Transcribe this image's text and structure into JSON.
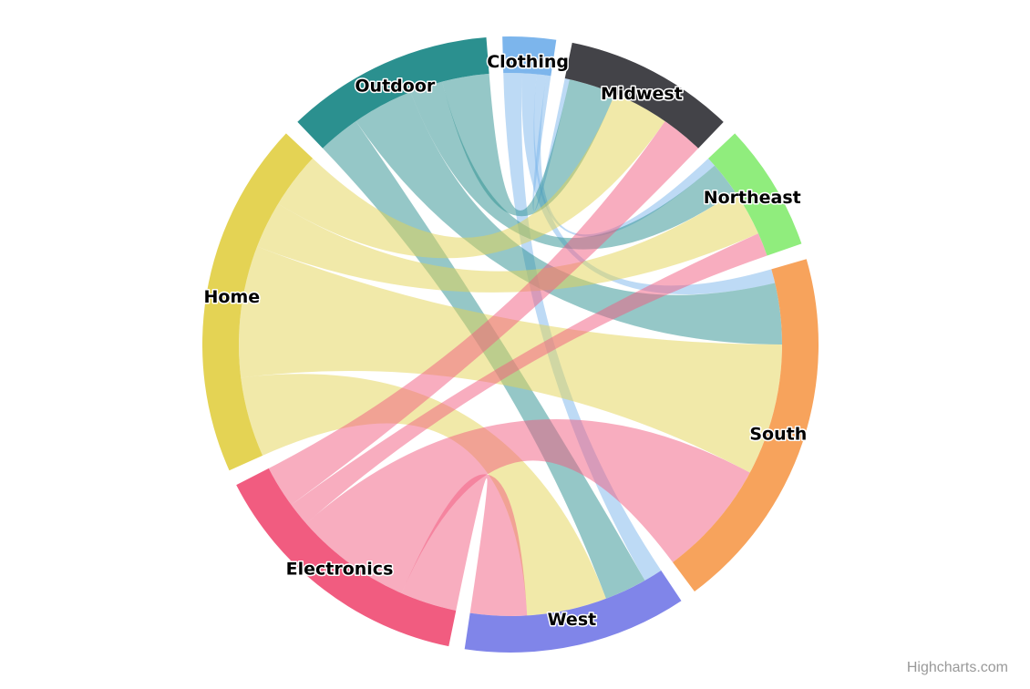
{
  "chart_data": {
    "type": "dependencywheel",
    "nodes": [
      {
        "name": "Clothing",
        "color": "#7cb5ec"
      },
      {
        "name": "Midwest",
        "color": "#434348"
      },
      {
        "name": "Northeast",
        "color": "#90ed7d"
      },
      {
        "name": "South",
        "color": "#f7a35c"
      },
      {
        "name": "West",
        "color": "#8085e9"
      },
      {
        "name": "Electronics",
        "color": "#f15c80"
      },
      {
        "name": "Home",
        "color": "#e4d354"
      },
      {
        "name": "Outdoor",
        "color": "#2b908f"
      }
    ],
    "links": [
      {
        "from": "Clothing",
        "to": "Midwest",
        "weight": 1
      },
      {
        "from": "Clothing",
        "to": "Northeast",
        "weight": 2
      },
      {
        "from": "Clothing",
        "to": "South",
        "weight": 3
      },
      {
        "from": "Clothing",
        "to": "West",
        "weight": 4
      },
      {
        "from": "Outdoor",
        "to": "Midwest",
        "weight": 10
      },
      {
        "from": "Outdoor",
        "to": "Northeast",
        "weight": 7
      },
      {
        "from": "Outdoor",
        "to": "South",
        "weight": 13
      },
      {
        "from": "Outdoor",
        "to": "West",
        "weight": 9
      },
      {
        "from": "Home",
        "to": "Midwest",
        "weight": 12
      },
      {
        "from": "Home",
        "to": "Northeast",
        "weight": 10
      },
      {
        "from": "Home",
        "to": "South",
        "weight": 28
      },
      {
        "from": "Home",
        "to": "West",
        "weight": 17
      },
      {
        "from": "Electronics",
        "to": "Midwest",
        "weight": 9
      },
      {
        "from": "Electronics",
        "to": "Northeast",
        "weight": 5
      },
      {
        "from": "Electronics",
        "to": "South",
        "weight": 25
      },
      {
        "from": "Electronics",
        "to": "West",
        "weight": 12
      }
    ]
  },
  "credits": "Highcharts.com"
}
